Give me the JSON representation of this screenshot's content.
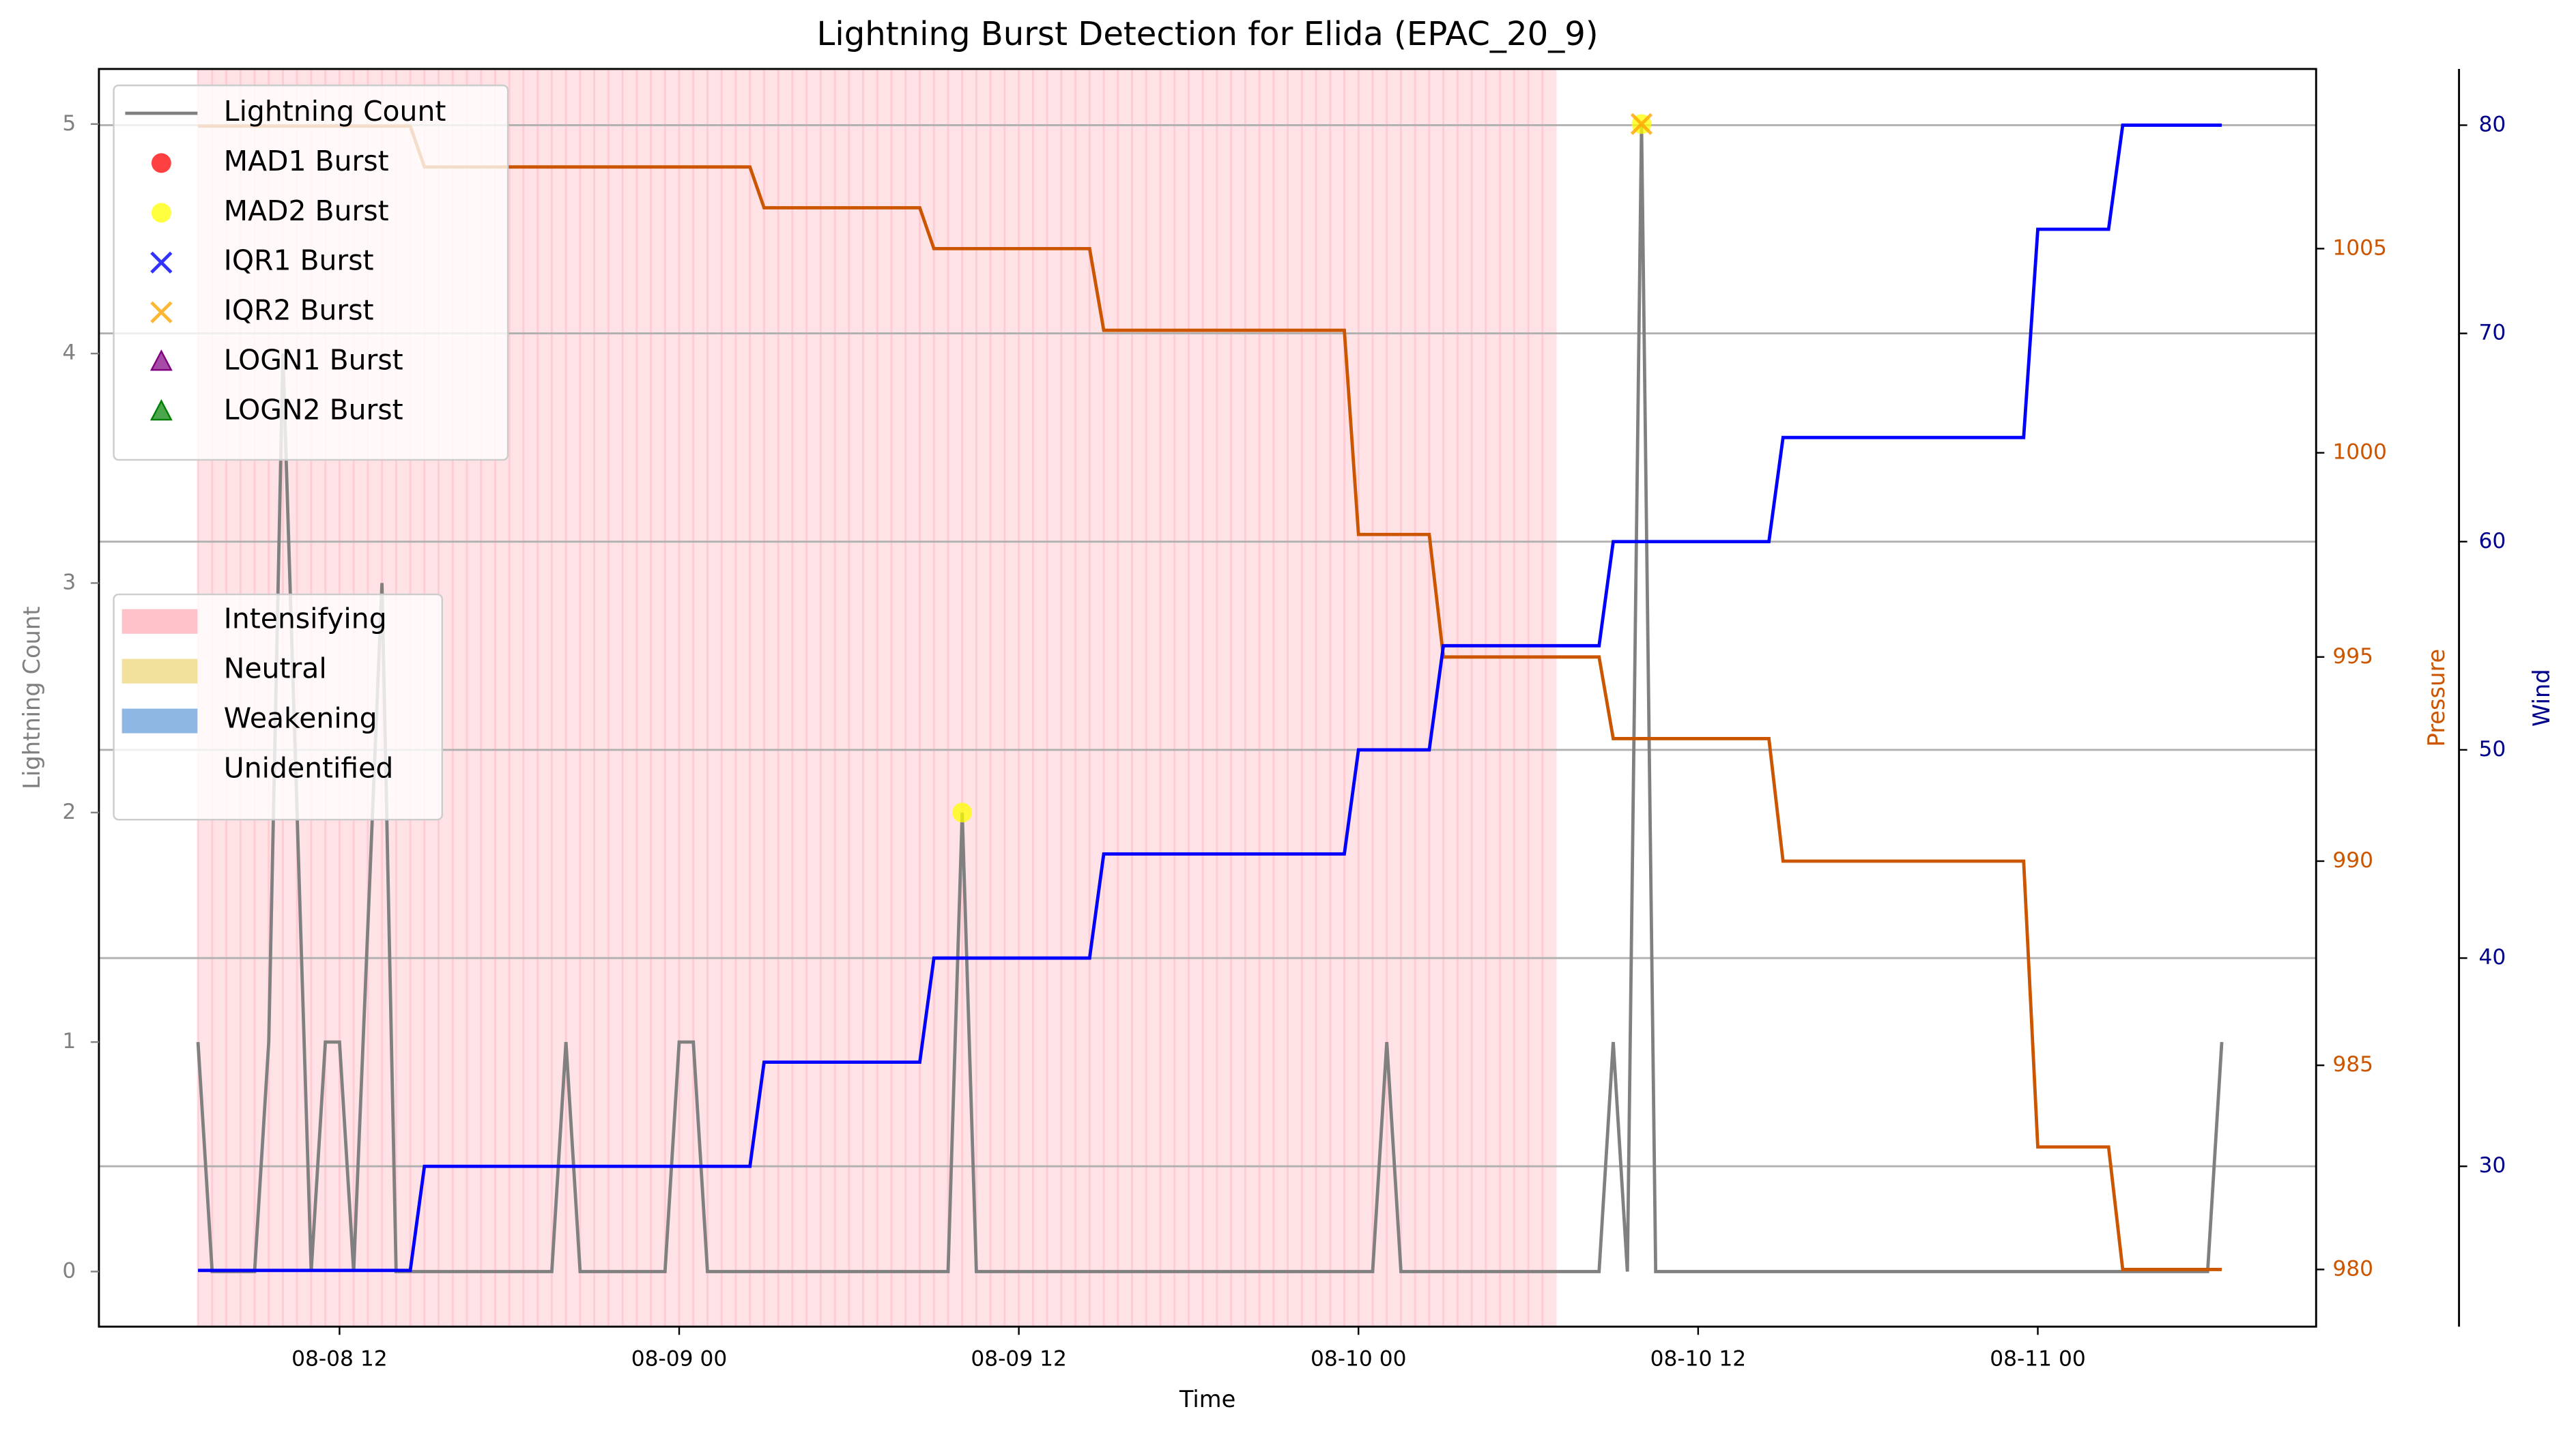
{
  "chart_data": {
    "type": "line",
    "title": "Lightning Burst Detection for Elida (EPAC_20_9)",
    "xlabel": "Time",
    "ylabel": "Lightning Count",
    "y2label": "Pressure",
    "y3label": "Wind",
    "xlim": [
      "08-08 03:30",
      "08-11 09:50"
    ],
    "xticks": [
      {
        "value": "08-08 12:00",
        "label": "08-08 12"
      },
      {
        "value": "08-09 00:00",
        "label": "08-09 00"
      },
      {
        "value": "08-09 12:00",
        "label": "08-09 12"
      },
      {
        "value": "08-10 00:00",
        "label": "08-10 00"
      },
      {
        "value": "08-10 12:00",
        "label": "08-10 12"
      },
      {
        "value": "08-11 00:00",
        "label": "08-11 00"
      }
    ],
    "ylim": [
      -0.24,
      5.24
    ],
    "yticks": [
      0,
      1,
      2,
      3,
      4,
      5
    ],
    "y2lim": [
      978.6,
      1009.4
    ],
    "y2ticks": [
      980,
      985,
      990,
      995,
      1000,
      1005
    ],
    "y3lim": [
      22.3,
      82.7
    ],
    "y3ticks": [
      30,
      40,
      50,
      60,
      70,
      80
    ],
    "grid": "y3",
    "phases": [
      {
        "name": "Intensifying",
        "color": "#ffb6c1",
        "spans": [
          [
            "08-08 07:00",
            "08-10 07:00"
          ]
        ]
      },
      {
        "name": "Neutral",
        "color": "#f0dc8c",
        "spans": []
      },
      {
        "name": "Weakening",
        "color": "#7aaadf",
        "spans": []
      },
      {
        "name": "Unidentified",
        "color": "#ffffff",
        "spans": []
      }
    ],
    "series": [
      {
        "name": "Lightning Count",
        "type": "line",
        "axis": "y",
        "color": "#808080",
        "x": [
          "08-08 07:00",
          "08-08 07:30",
          "08-08 09:00",
          "08-08 09:30",
          "08-08 10:00",
          "08-08 10:30",
          "08-08 11:00",
          "08-08 11:30",
          "08-08 12:00",
          "08-08 12:30",
          "08-08 13:30",
          "08-08 14:00",
          "08-08 19:30",
          "08-08 20:00",
          "08-08 20:30",
          "08-08 23:30",
          "08-09 00:00",
          "08-09 00:30",
          "08-09 01:00",
          "08-09 09:30",
          "08-09 10:00",
          "08-09 10:30",
          "08-10 00:30",
          "08-10 01:00",
          "08-10 01:30",
          "08-10 08:30",
          "08-10 09:00",
          "08-10 09:30",
          "08-10 10:00",
          "08-10 10:30",
          "08-11 06:00",
          "08-11 06:30"
        ],
        "values": [
          1,
          0,
          0,
          1,
          4,
          2,
          0,
          1,
          1,
          0,
          3,
          0,
          0,
          1,
          0,
          0,
          1,
          1,
          0,
          0,
          2,
          0,
          0,
          1,
          0,
          0,
          1,
          0,
          5,
          0,
          0,
          1
        ]
      },
      {
        "name": "MAD1 Burst",
        "type": "scatter",
        "marker": "o",
        "axis": "y",
        "color": "#ff0000",
        "x": [],
        "values": []
      },
      {
        "name": "MAD2 Burst",
        "type": "scatter",
        "marker": "o",
        "axis": "y",
        "color": "#ffff00",
        "x": [
          "08-09 10:00",
          "08-10 10:00"
        ],
        "values": [
          2,
          5
        ]
      },
      {
        "name": "IQR1 Burst",
        "type": "scatter",
        "marker": "x",
        "axis": "y",
        "color": "#0000ff",
        "x": [],
        "values": []
      },
      {
        "name": "IQR2 Burst",
        "type": "scatter",
        "marker": "x",
        "axis": "y",
        "color": "#ffa500",
        "x": [
          "08-10 10:00"
        ],
        "values": [
          5
        ]
      },
      {
        "name": "LOGN1 Burst",
        "type": "scatter",
        "marker": "^",
        "axis": "y",
        "color": "#800080",
        "x": [],
        "values": []
      },
      {
        "name": "LOGN2 Burst",
        "type": "scatter",
        "marker": "^",
        "axis": "y",
        "color": "#008000",
        "x": [],
        "values": []
      },
      {
        "name": "Pressure",
        "type": "line",
        "axis": "y2",
        "color": "#cc5500",
        "legend": false,
        "x": [
          "08-08 07:00",
          "08-08 14:30",
          "08-08 15:00",
          "08-09 02:30",
          "08-09 03:00",
          "08-09 08:30",
          "08-09 09:00",
          "08-09 14:30",
          "08-09 15:00",
          "08-09 23:30",
          "08-10 00:00",
          "08-10 02:30",
          "08-10 03:00",
          "08-10 08:30",
          "08-10 09:00",
          "08-10 14:30",
          "08-10 15:00",
          "08-10 23:30",
          "08-11 00:00",
          "08-11 02:30",
          "08-11 03:00",
          "08-11 06:30"
        ],
        "values": [
          1008,
          1008,
          1007,
          1007,
          1006,
          1006,
          1005,
          1005,
          1003,
          1003,
          998,
          998,
          995,
          995,
          993,
          993,
          990,
          990,
          983,
          983,
          980,
          980
        ]
      },
      {
        "name": "Wind",
        "type": "line",
        "axis": "y3",
        "color": "#0000ff",
        "legend": false,
        "x": [
          "08-08 07:00",
          "08-08 14:30",
          "08-08 15:00",
          "08-09 02:30",
          "08-09 03:00",
          "08-09 08:30",
          "08-09 09:00",
          "08-09 14:30",
          "08-09 15:00",
          "08-09 23:30",
          "08-10 00:00",
          "08-10 02:30",
          "08-10 03:00",
          "08-10 08:30",
          "08-10 09:00",
          "08-10 14:30",
          "08-10 15:00",
          "08-10 23:30",
          "08-11 00:00",
          "08-11 02:30",
          "08-11 03:00",
          "08-11 06:30"
        ],
        "values": [
          25,
          25,
          30,
          30,
          35,
          35,
          40,
          40,
          45,
          45,
          50,
          50,
          55,
          55,
          60,
          60,
          65,
          65,
          75,
          75,
          80,
          80
        ]
      }
    ]
  }
}
